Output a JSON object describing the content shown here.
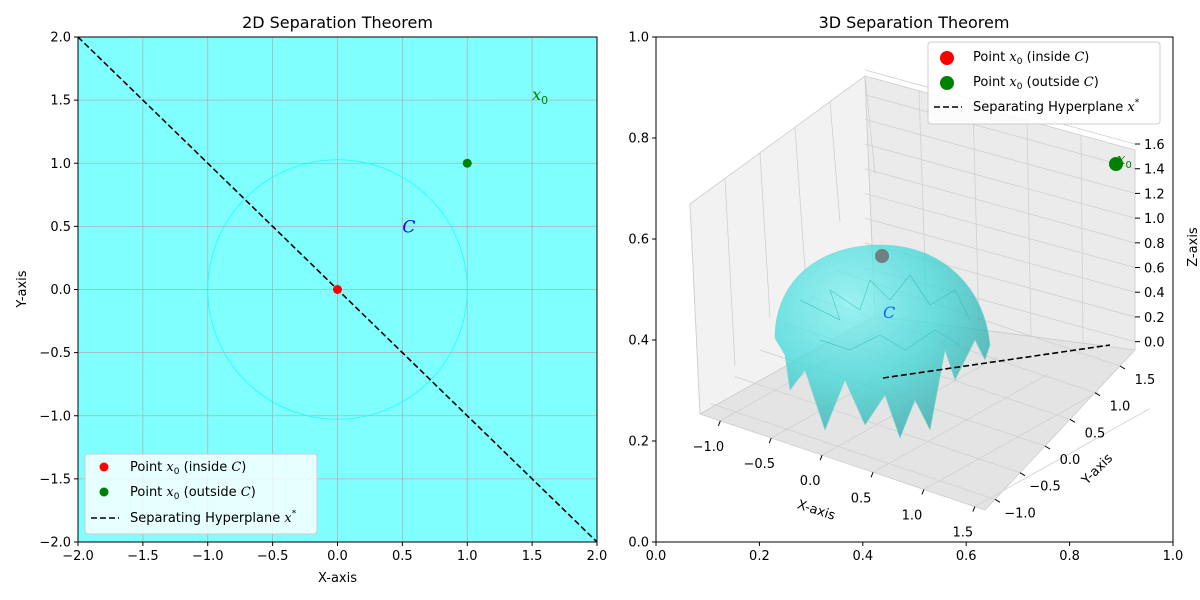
{
  "chart_data": [
    {
      "type": "scatter",
      "title": "2D Separation Theorem",
      "xlabel": "X-axis",
      "ylabel": "Y-axis",
      "xlim": [
        -2,
        2
      ],
      "ylim": [
        -2,
        2
      ],
      "xticks": [
        "−2.0",
        "−1.5",
        "−1.0",
        "−0.5",
        "0.0",
        "0.5",
        "1.0",
        "1.5",
        "2.0"
      ],
      "yticks": [
        "−2.0",
        "−1.5",
        "−1.0",
        "−0.5",
        "0.0",
        "0.5",
        "1.0",
        "1.5",
        "2.0"
      ],
      "grid": true,
      "legend_position": "lower-left",
      "background_color": "#80ffff",
      "set_C": {
        "shape": "circle",
        "center": [
          0,
          0
        ],
        "radius": 1,
        "label": "C",
        "color": "#00ffff"
      },
      "points": [
        {
          "name": "Point x0 (inside C)",
          "x": 0,
          "y": 0,
          "color": "#ff0000"
        },
        {
          "name": "Point x0 (outside C)",
          "x": 1,
          "y": 1,
          "color": "#008000"
        }
      ],
      "line": {
        "name": "Separating Hyperplane x*",
        "points": [
          [
            -2,
            2
          ],
          [
            2,
            -2
          ]
        ],
        "style": "dashed",
        "color": "#000000"
      },
      "annotations": [
        {
          "text": "C",
          "x": 0.5,
          "y": 0.5,
          "color": "#0000ff"
        },
        {
          "text": "x0",
          "x": 1.5,
          "y": 1.5,
          "color": "#008000"
        }
      ],
      "legend": {
        "inside": {
          "pre": "Point ",
          "var": "x",
          "sub": "0",
          "post": " (inside ",
          "c": "C",
          "end": ")"
        },
        "outside": {
          "pre": "Point ",
          "var": "x",
          "sub": "0",
          "post": " (outside ",
          "c": "C",
          "end": ")"
        },
        "line": {
          "pre": "Separating Hyperplane ",
          "var": "x",
          "sup": "*"
        }
      }
    },
    {
      "type": "scatter",
      "title": "3D Separation Theorem",
      "xlabel": "X-axis",
      "ylabel": "Y-axis",
      "zlabel": "Z-axis",
      "xlim": [
        -1.2,
        1.6
      ],
      "ylim": [
        -1.2,
        1.8
      ],
      "zlim": [
        -0.1,
        1.6
      ],
      "xticks": [
        "−1.0",
        "−0.5",
        "0.0",
        "0.5",
        "1.0",
        "1.5"
      ],
      "yticks": [
        "−1.0",
        "−0.5",
        "0.0",
        "0.5",
        "1.0",
        "1.5"
      ],
      "zticks": [
        "0.0",
        "0.2",
        "0.4",
        "0.6",
        "0.8",
        "1.0",
        "1.2",
        "1.4",
        "1.6"
      ],
      "outer_xticks": [
        "0.0",
        "0.2",
        "0.4",
        "0.6",
        "0.8",
        "1.0"
      ],
      "outer_yticks": [
        "0.0",
        "0.2",
        "0.4",
        "0.6",
        "0.8",
        "1.0"
      ],
      "legend_position": "upper-right",
      "set_C": {
        "shape": "hemisphere",
        "center": [
          0,
          0,
          0
        ],
        "radius": 1,
        "label": "C",
        "color": "#00e5e5"
      },
      "points": [
        {
          "name": "Point x0 (inside C)",
          "x": 0,
          "y": 0,
          "z": 1,
          "color": "#ff0000"
        },
        {
          "name": "Point x0 (outside C)",
          "x": 1.5,
          "y": 1.5,
          "z": 1.5,
          "color": "#008000"
        }
      ],
      "line": {
        "name": "Separating Hyperplane x*",
        "points": [
          [
            0,
            -1,
            0
          ],
          [
            1,
            1,
            0
          ]
        ],
        "style": "dashed",
        "color": "#000000"
      },
      "annotations": [
        {
          "text": "C",
          "x": 0.5,
          "y": 0.5,
          "z": 0.5,
          "color": "#0000ff"
        },
        {
          "text": "x0",
          "x": 1.5,
          "y": 1.5,
          "z": 1.5,
          "color": "#008000"
        }
      ],
      "legend": {
        "inside": {
          "pre": "Point ",
          "var": "x",
          "sub": "0",
          "post": " (inside ",
          "c": "C",
          "end": ")"
        },
        "outside": {
          "pre": "Point ",
          "var": "x",
          "sub": "0",
          "post": " (outside ",
          "c": "C",
          "end": ")"
        },
        "line": {
          "pre": "Separating Hyperplane ",
          "var": "x",
          "sup": "*"
        }
      }
    }
  ]
}
